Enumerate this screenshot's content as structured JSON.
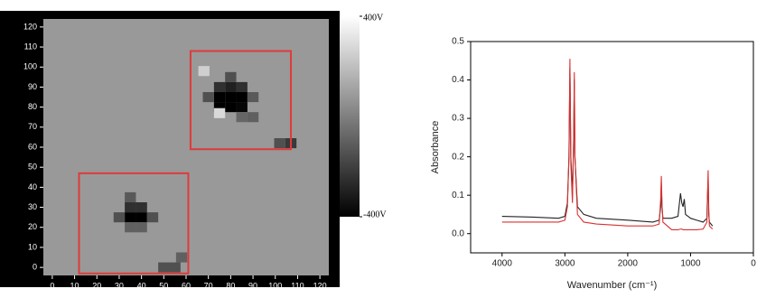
{
  "chart_data": [
    {
      "type": "heatmap",
      "xlim": [
        -4,
        124
      ],
      "ylim": [
        -4,
        124
      ],
      "xticks": [
        0,
        10,
        20,
        30,
        40,
        50,
        60,
        70,
        80,
        90,
        100,
        110,
        120
      ],
      "yticks": [
        0,
        10,
        20,
        30,
        40,
        50,
        60,
        70,
        80,
        90,
        100,
        110,
        120
      ],
      "zlim": [
        -400,
        400
      ],
      "zticks": [
        {
          "value": 400,
          "label": "400V"
        },
        {
          "value": -400,
          "label": "-400V"
        }
      ],
      "fill_value": 80,
      "cell_size": 5,
      "x": [
        75,
        80,
        85,
        75,
        80,
        85,
        75,
        80,
        85,
        70,
        90,
        80,
        90,
        68,
        75,
        85,
        107,
        102,
        35,
        40,
        35,
        40,
        30,
        45,
        35,
        40,
        35,
        50,
        55,
        58
      ],
      "y": [
        80,
        80,
        80,
        85,
        85,
        85,
        90,
        90,
        90,
        85,
        85,
        95,
        75,
        98,
        77,
        75,
        62,
        62,
        25,
        25,
        30,
        30,
        25,
        25,
        20,
        20,
        35,
        0,
        0,
        5
      ],
      "values": [
        -400,
        -400,
        -380,
        -400,
        -400,
        -400,
        -250,
        -300,
        -250,
        -150,
        -120,
        -150,
        -100,
        250,
        280,
        -80,
        -220,
        -150,
        -400,
        -400,
        -250,
        -250,
        -150,
        -150,
        -100,
        -100,
        -120,
        -150,
        -150,
        -100
      ],
      "regions": [
        {
          "x": [
            12,
            61
          ],
          "y": [
            -3,
            47
          ]
        },
        {
          "x": [
            62,
            107
          ],
          "y": [
            59,
            108
          ]
        }
      ],
      "region_color": "#e03a3a"
    },
    {
      "type": "line",
      "xlabel": "Wavenumber (cm⁻¹)",
      "ylabel": "Absorbance",
      "xlim": [
        4500,
        0
      ],
      "ylim": [
        -0.05,
        0.5
      ],
      "xticks": [
        4000,
        3000,
        2000,
        1000,
        0
      ],
      "yticks": [
        {
          "value": 0,
          "label": "0.0"
        },
        0.1,
        0.2,
        0.3,
        0.4,
        0.5
      ],
      "x": [
        4000,
        3500,
        3100,
        3000,
        2960,
        2935,
        2920,
        2905,
        2880,
        2860,
        2850,
        2840,
        2800,
        2700,
        2500,
        2000,
        1600,
        1500,
        1475,
        1465,
        1455,
        1440,
        1300,
        1200,
        1160,
        1140,
        1120,
        1100,
        1080,
        1000,
        900,
        800,
        740,
        730,
        720,
        710,
        700,
        650
      ],
      "series": [
        {
          "color": "#222222",
          "values": [
            0.045,
            0.043,
            0.04,
            0.045,
            0.08,
            0.2,
            0.43,
            0.2,
            0.1,
            0.25,
            0.4,
            0.2,
            0.07,
            0.05,
            0.04,
            0.035,
            0.03,
            0.035,
            0.07,
            0.13,
            0.07,
            0.04,
            0.04,
            0.045,
            0.105,
            0.08,
            0.07,
            0.09,
            0.05,
            0.04,
            0.035,
            0.03,
            0.04,
            0.1,
            0.14,
            0.05,
            0.03,
            0.02
          ]
        },
        {
          "color": "#d93030",
          "values": [
            0.03,
            0.03,
            0.03,
            0.035,
            0.07,
            0.2,
            0.455,
            0.18,
            0.08,
            0.25,
            0.42,
            0.2,
            0.05,
            0.03,
            0.025,
            0.02,
            0.02,
            0.025,
            0.09,
            0.15,
            0.08,
            0.03,
            0.01,
            0.01,
            0.012,
            0.012,
            0.01,
            0.01,
            0.01,
            0.01,
            0.01,
            0.012,
            0.03,
            0.1,
            0.165,
            0.06,
            0.02,
            0.012
          ]
        }
      ]
    }
  ]
}
